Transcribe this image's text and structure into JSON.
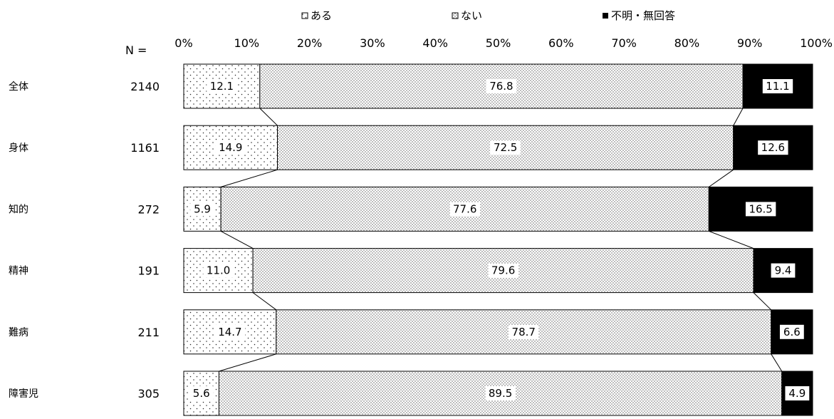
{
  "chart_data": {
    "type": "bar",
    "orientation": "horizontal",
    "stacked": "percent",
    "n_label": "N =",
    "categories": [
      "全体",
      "身体",
      "知的",
      "精神",
      "難病",
      "障害児"
    ],
    "n_values": [
      "2140",
      "1161",
      "272",
      "191",
      "211",
      "305"
    ],
    "series": [
      {
        "name": "ある",
        "values": [
          12.1,
          14.9,
          5.9,
          11.0,
          14.7,
          5.6
        ],
        "labels": [
          "12.1",
          "14.9",
          "5.9",
          "11.0",
          "14.7",
          "5.6"
        ],
        "fill": "sparse-dots"
      },
      {
        "name": "ない",
        "values": [
          76.8,
          72.5,
          77.6,
          79.6,
          78.7,
          89.5
        ],
        "labels": [
          "76.8",
          "72.5",
          "77.6",
          "79.6",
          "78.7",
          "89.5"
        ],
        "fill": "dense-dots"
      },
      {
        "name": "不明・無回答",
        "values": [
          11.1,
          12.6,
          16.5,
          9.4,
          6.6,
          4.9
        ],
        "labels": [
          "11.1",
          "12.6",
          "16.5",
          "9.4",
          "6.6",
          "4.9"
        ],
        "fill": "solid-black"
      }
    ],
    "xticks": [
      "0%",
      "10%",
      "20%",
      "30%",
      "40%",
      "50%",
      "60%",
      "70%",
      "80%",
      "90%",
      "100%"
    ],
    "xlim": [
      0,
      100
    ],
    "legend": "top",
    "series_lines": true,
    "grid": false
  }
}
